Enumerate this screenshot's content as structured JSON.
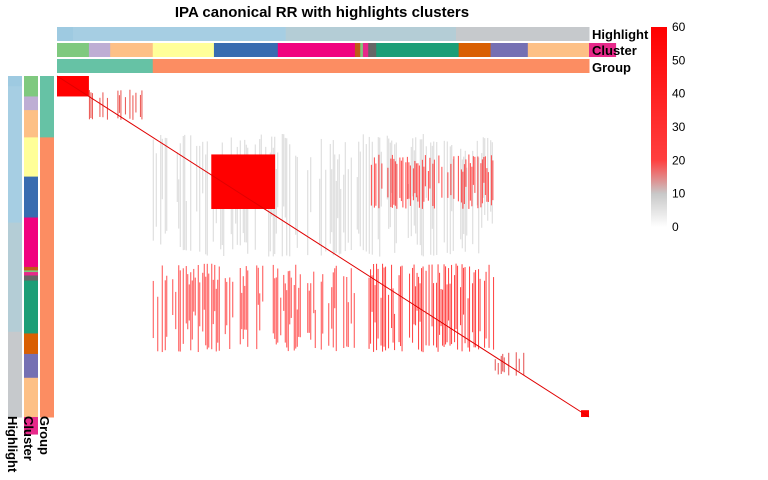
{
  "chart_data": {
    "type": "heatmap",
    "title": "IPA canonical RR with highlights clusters",
    "annotation_tracks": [
      "Highlight",
      "Cluster",
      "Group"
    ],
    "row_annotation_labels": [
      "Highlight",
      "Cluster",
      "Group"
    ],
    "tracks": {
      "Highlight": [
        {
          "frac": 0.03,
          "color": "#9ecae1"
        },
        {
          "frac": 0.4,
          "color": "#a6cee3"
        },
        {
          "frac": 0.32,
          "color": "#b4cdd6"
        },
        {
          "frac": 0.25,
          "color": "#c6c9cc"
        }
      ],
      "Cluster": [
        {
          "frac": 0.06,
          "color": "#7fc97f"
        },
        {
          "frac": 0.04,
          "color": "#beaed4"
        },
        {
          "frac": 0.08,
          "color": "#fdc086"
        },
        {
          "frac": 0.115,
          "color": "#ffff99"
        },
        {
          "frac": 0.12,
          "color": "#386cb0"
        },
        {
          "frac": 0.145,
          "color": "#f0027f"
        },
        {
          "frac": 0.01,
          "color": "#bf5b17"
        },
        {
          "frac": 0.005,
          "color": "#7fc97f"
        },
        {
          "frac": 0.01,
          "color": "#e7298a"
        },
        {
          "frac": 0.015,
          "color": "#666666"
        },
        {
          "frac": 0.155,
          "color": "#1b9e77"
        },
        {
          "frac": 0.06,
          "color": "#d95f02"
        },
        {
          "frac": 0.07,
          "color": "#7570b3"
        },
        {
          "frac": 0.115,
          "color": "#fdc086"
        },
        {
          "frac": 0.05,
          "color": "#e7298a"
        }
      ],
      "Group": [
        {
          "frac": 0.18,
          "color": "#66c2a5"
        },
        {
          "frac": 0.82,
          "color": "#fc8d62"
        }
      ]
    },
    "blocks": [
      {
        "r0": 0.0,
        "r1": 0.06,
        "c0": 0.0,
        "c1": 0.06,
        "color": "#ff0000",
        "solid": true
      },
      {
        "r0": 0.04,
        "r1": 0.13,
        "c0": 0.06,
        "c1": 0.18,
        "color": "#e8352f",
        "solid": false,
        "density": 0.35
      },
      {
        "r0": 0.17,
        "r1": 0.53,
        "c0": 0.18,
        "c1": 0.82,
        "color": "#d1d1d1",
        "solid": false,
        "density": 0.55
      },
      {
        "r0": 0.23,
        "r1": 0.39,
        "c0": 0.29,
        "c1": 0.41,
        "color": "#ff0000",
        "solid": true
      },
      {
        "r0": 0.23,
        "r1": 0.39,
        "c0": 0.59,
        "c1": 0.82,
        "color": "#ff2a2a",
        "solid": false,
        "density": 0.7
      },
      {
        "r0": 0.55,
        "r1": 0.81,
        "c0": 0.18,
        "c1": 0.56,
        "color": "#ff3030",
        "solid": false,
        "density": 0.65
      },
      {
        "r0": 0.55,
        "r1": 0.81,
        "c0": 0.58,
        "c1": 0.82,
        "color": "#ff2020",
        "solid": false,
        "density": 0.7
      },
      {
        "r0": 0.81,
        "r1": 0.88,
        "c0": 0.82,
        "c1": 0.88,
        "color": "#e03030",
        "solid": false,
        "density": 0.45
      },
      {
        "r0": 0.98,
        "r1": 1.0,
        "c0": 0.985,
        "c1": 1.0,
        "color": "#ff0000",
        "solid": true
      }
    ],
    "colorbar": {
      "min": 0,
      "max": 60,
      "ticks": [
        "60",
        "50",
        "40",
        "30",
        "20",
        "10",
        "0"
      ],
      "stops": [
        {
          "value": 0,
          "color": "#ffffff"
        },
        {
          "value": 10,
          "color": "#c8c8c8"
        },
        {
          "value": 20,
          "color": "#ff4040"
        },
        {
          "value": 60,
          "color": "#ff0000"
        }
      ]
    }
  }
}
